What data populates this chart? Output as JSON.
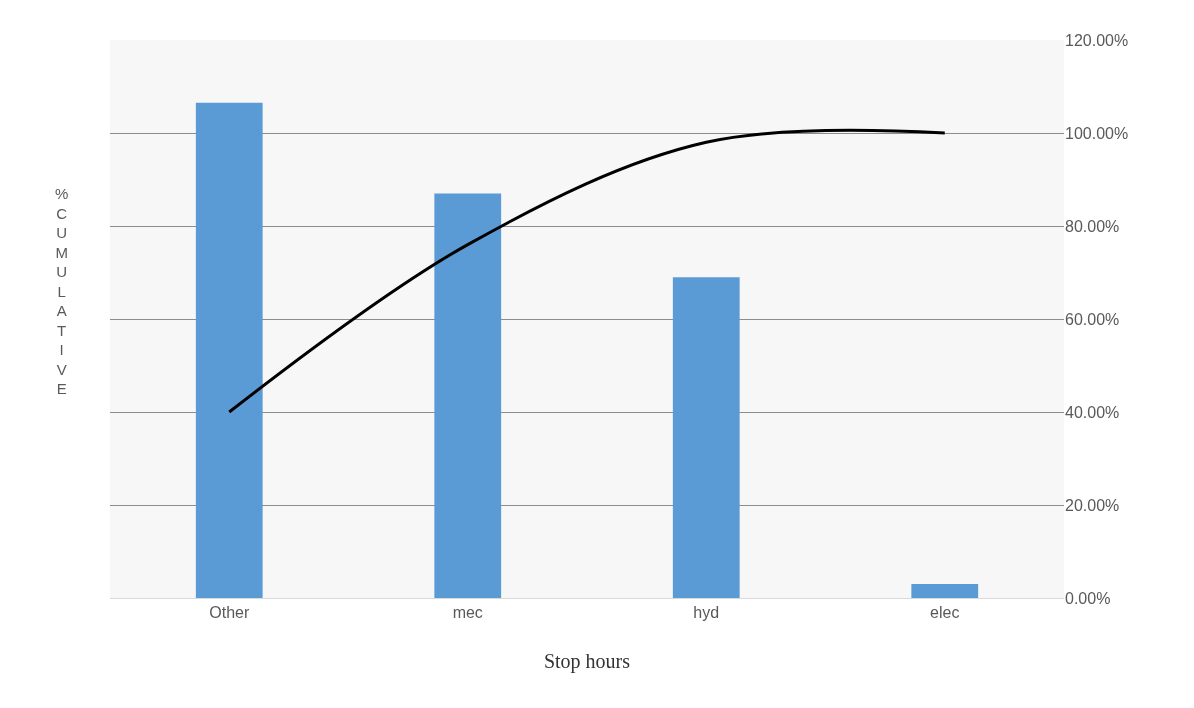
{
  "chart_data": {
    "type": "bar",
    "xlabel": "Stop hours",
    "ylabel": "%CUMULATIVE",
    "categories": [
      "Other",
      "mec",
      "hyd",
      "elec"
    ],
    "series": [
      {
        "axis": "y2",
        "color": "#5b9bd5",
        "values": [
          106.5,
          87,
          69,
          3
        ]
      },
      {
        "type": "line",
        "axis": "y2",
        "color": "#000000",
        "values": [
          40,
          76,
          98,
          100
        ]
      }
    ],
    "y2lim": [
      0,
      120
    ],
    "y2ticks": [
      {
        "value": 0,
        "label": "0.00%"
      },
      {
        "value": 20,
        "label": "20.00%"
      },
      {
        "value": 40,
        "label": "40.00%"
      },
      {
        "value": 60,
        "label": "60.00%"
      },
      {
        "value": 80,
        "label": "80.00%"
      },
      {
        "value": 100,
        "label": "100.00%"
      },
      {
        "value": 120,
        "label": "120.00%"
      }
    ],
    "grid": "y",
    "marker": "none",
    "line_style": "solid"
  }
}
